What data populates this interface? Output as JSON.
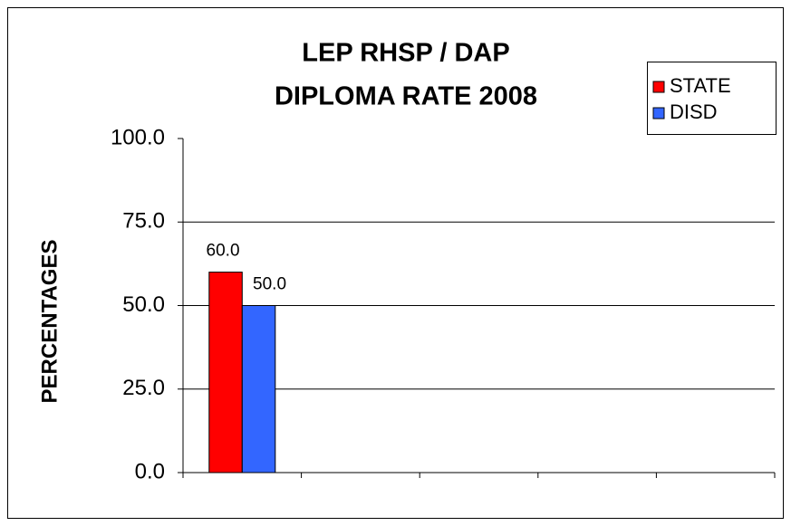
{
  "chart_data": {
    "type": "bar",
    "title": [
      "LEP RHSP / DAP",
      "DIPLOMA RATE 2008"
    ],
    "y_label": "PERCENTAGES",
    "categories": [
      null,
      null,
      null,
      null,
      null
    ],
    "series": [
      {
        "name": "STATE",
        "color": "#ff0000",
        "values": [
          60,
          null,
          null,
          null,
          null
        ],
        "value_labels": [
          "60.0",
          null,
          null,
          null,
          null
        ]
      },
      {
        "name": "DISD",
        "color": "#3366ff",
        "values": [
          50,
          null,
          null,
          null,
          null
        ],
        "value_labels": [
          "50.0",
          null,
          null,
          null,
          null
        ]
      }
    ],
    "ylim": [
      0,
      100
    ],
    "yticks": [
      {
        "value": 0,
        "label": "0.0"
      },
      {
        "value": 25,
        "label": "25.0"
      },
      {
        "value": 50,
        "label": "50.0"
      },
      {
        "value": 75,
        "label": "75.0"
      },
      {
        "value": 100,
        "label": "100.0"
      }
    ],
    "grid": true,
    "legend": "top-right"
  }
}
